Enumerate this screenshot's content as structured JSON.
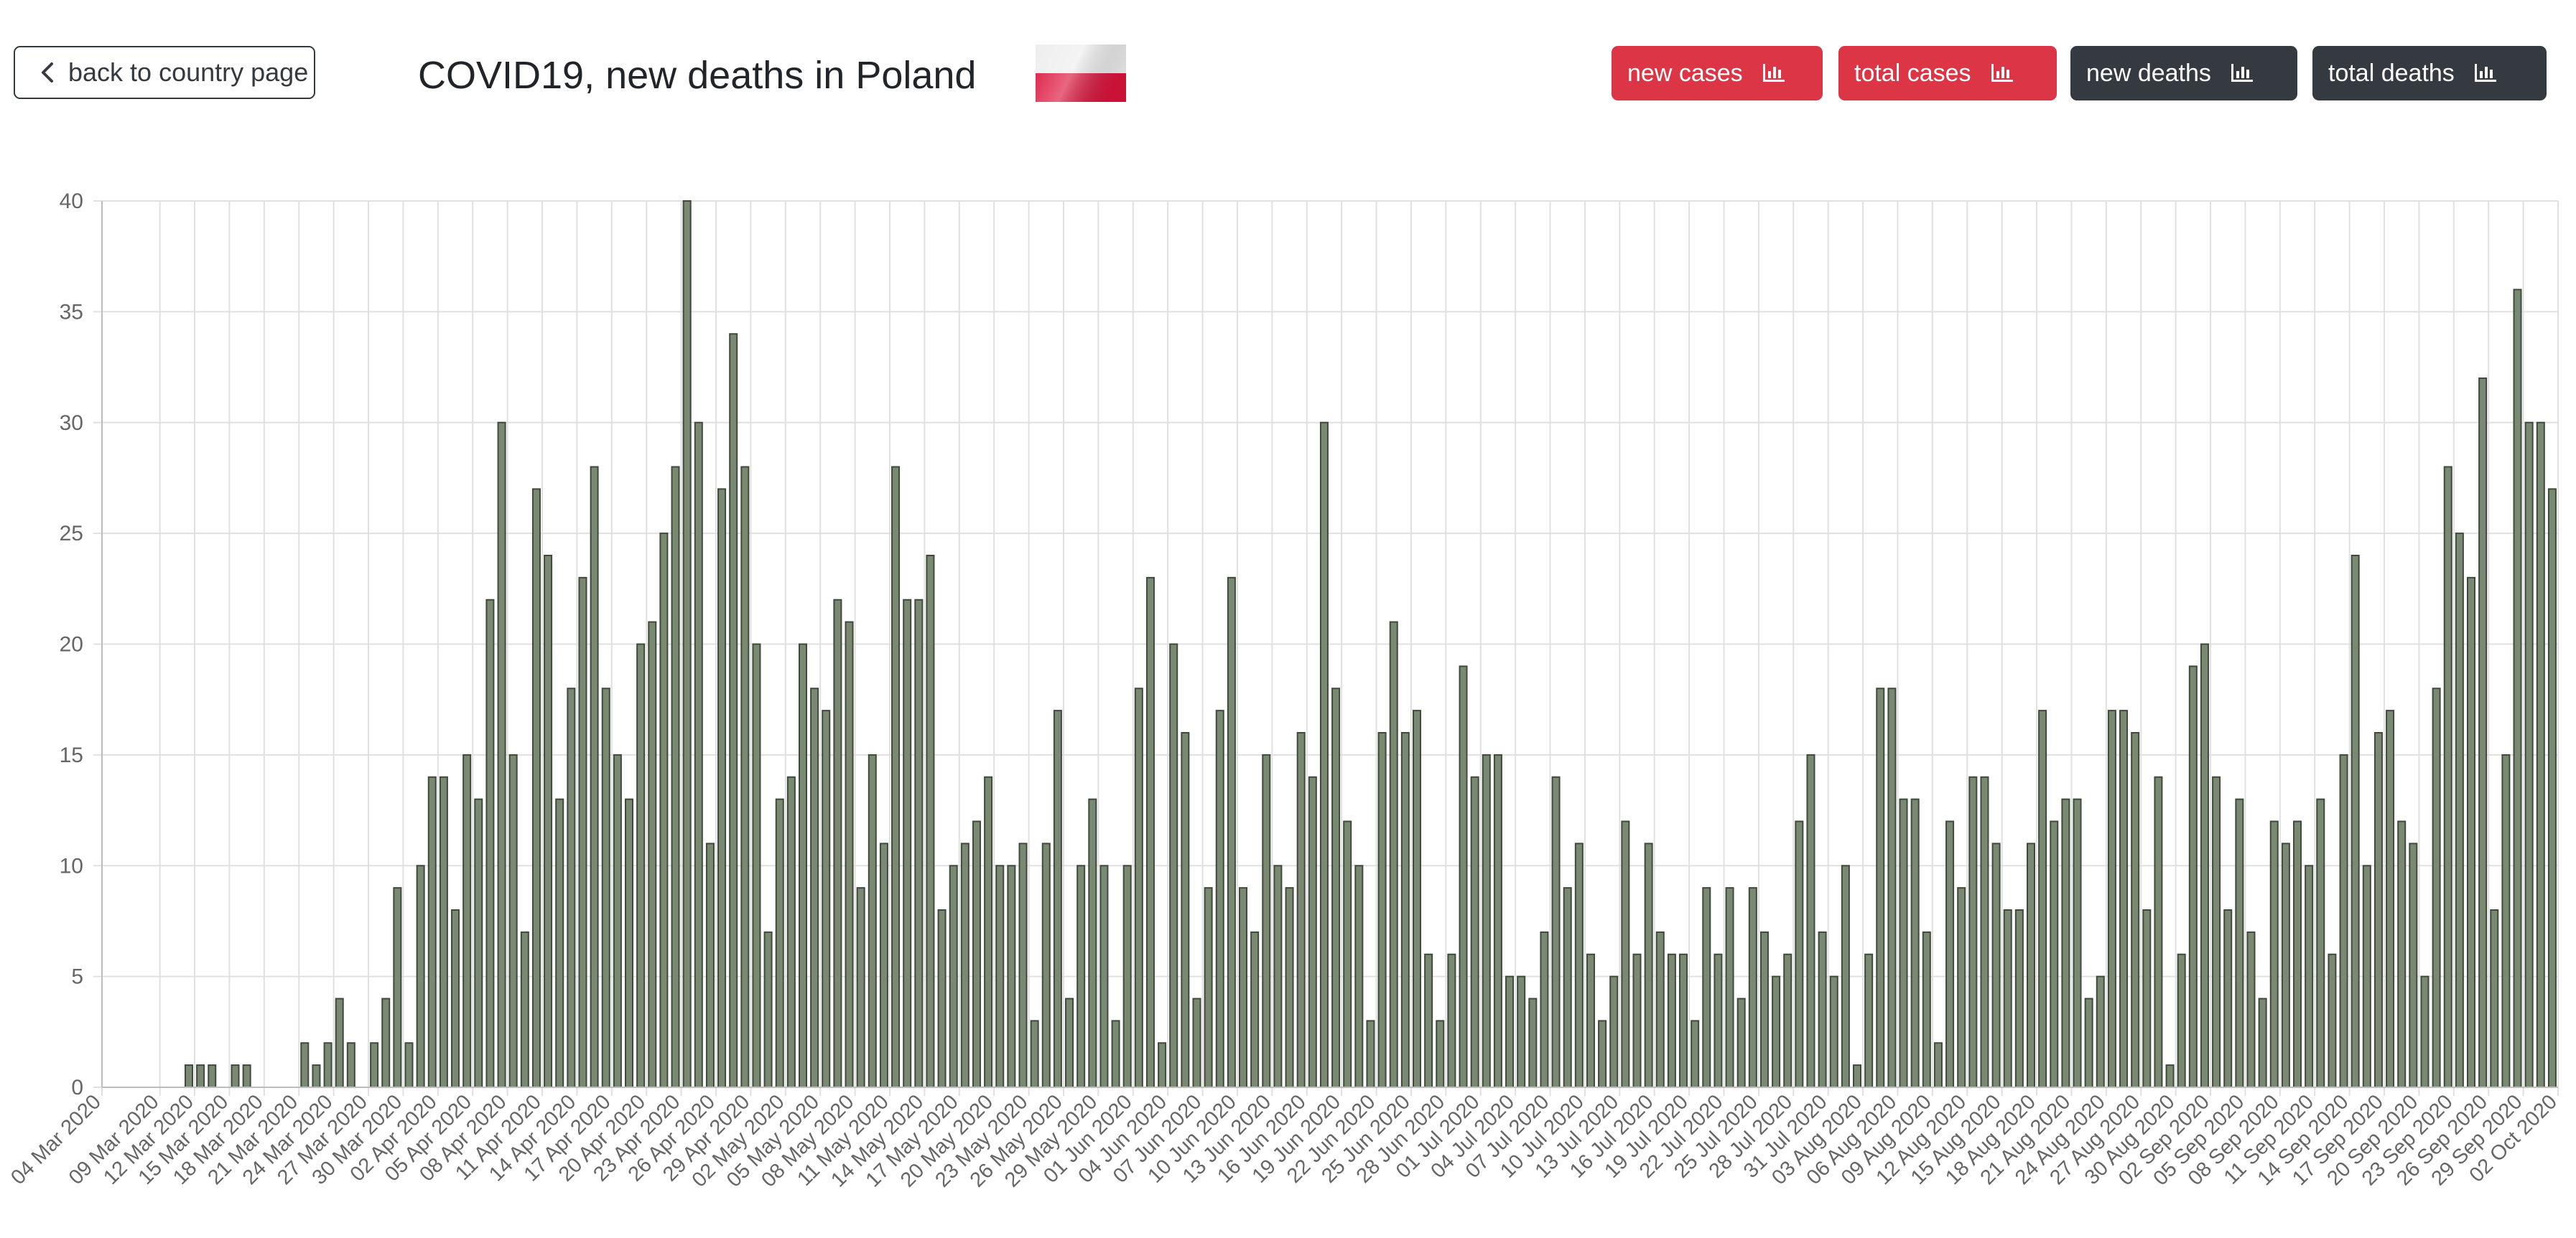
{
  "header": {
    "back_label": "back to country page",
    "title": "COVID19, new deaths in Poland",
    "flag_icon": "poland-flag-icon",
    "buttons": [
      {
        "label": "new cases",
        "icon": "bar-chart-icon",
        "style": "red"
      },
      {
        "label": "total cases",
        "icon": "bar-chart-icon",
        "style": "red"
      },
      {
        "label": "new deaths",
        "icon": "bar-chart-icon",
        "style": "dark"
      },
      {
        "label": "total deaths",
        "icon": "bar-chart-icon",
        "style": "dark"
      }
    ]
  },
  "colors": {
    "bar_fill": "#7a8a72",
    "bar_stroke": "#3f4a3b",
    "grid": "#e0e0e0",
    "red_button": "#dc3545",
    "dark_button": "#343a40",
    "flag_white": "#eeeeee",
    "flag_red": "#dc143c"
  },
  "chart_data": {
    "type": "bar",
    "title": "",
    "xlabel": "",
    "ylabel": "",
    "ylim": [
      0,
      40
    ],
    "yticks": [
      0,
      5,
      10,
      15,
      20,
      25,
      30,
      35,
      40
    ],
    "grid": true,
    "start_date": "2020-03-04",
    "tick_interval_days": 3,
    "x_tick_labels": [
      "04 Mar 2020",
      "09 Mar 2020",
      "12 Mar 2020",
      "15 Mar 2020",
      "18 Mar 2020",
      "21 Mar 2020",
      "24 Mar 2020",
      "27 Mar 2020",
      "30 Mar 2020",
      "02 Apr 2020",
      "05 Apr 2020",
      "08 Apr 2020",
      "11 Apr 2020",
      "14 Apr 2020",
      "17 Apr 2020",
      "20 Apr 2020",
      "23 Apr 2020",
      "26 Apr 2020",
      "29 Apr 2020",
      "02 May 2020",
      "05 May 2020",
      "08 May 2020",
      "11 May 2020",
      "14 May 2020",
      "17 May 2020",
      "20 May 2020",
      "23 May 2020",
      "26 May 2020",
      "29 May 2020",
      "01 Jun 2020",
      "04 Jun 2020",
      "07 Jun 2020",
      "10 Jun 2020",
      "13 Jun 2020",
      "16 Jun 2020",
      "19 Jun 2020",
      "22 Jun 2020",
      "25 Jun 2020",
      "28 Jun 2020",
      "01 Jul 2020",
      "04 Jul 2020",
      "07 Jul 2020",
      "10 Jul 2020",
      "13 Jul 2020",
      "16 Jul 2020",
      "19 Jul 2020",
      "22 Jul 2020",
      "25 Jul 2020",
      "28 Jul 2020",
      "31 Jul 2020",
      "03 Aug 2020",
      "06 Aug 2020",
      "09 Aug 2020",
      "12 Aug 2020",
      "15 Aug 2020",
      "18 Aug 2020",
      "21 Aug 2020",
      "24 Aug 2020",
      "27 Aug 2020",
      "30 Aug 2020",
      "02 Sep 2020",
      "05 Sep 2020",
      "08 Sep 2020",
      "11 Sep 2020",
      "14 Sep 2020",
      "17 Sep 2020",
      "20 Sep 2020",
      "23 Sep 2020",
      "26 Sep 2020",
      "29 Sep 2020",
      "02 Oct 2020"
    ],
    "values": [
      0,
      0,
      0,
      0,
      0,
      0,
      0,
      1,
      1,
      1,
      0,
      1,
      1,
      0,
      0,
      0,
      0,
      2,
      1,
      2,
      4,
      2,
      0,
      2,
      4,
      9,
      2,
      10,
      14,
      14,
      8,
      15,
      13,
      22,
      30,
      15,
      7,
      27,
      24,
      13,
      18,
      23,
      28,
      18,
      15,
      13,
      20,
      21,
      25,
      28,
      40,
      30,
      11,
      27,
      34,
      28,
      20,
      7,
      13,
      14,
      20,
      18,
      17,
      22,
      21,
      9,
      15,
      11,
      28,
      22,
      22,
      24,
      8,
      10,
      11,
      12,
      14,
      10,
      10,
      11,
      3,
      11,
      17,
      4,
      10,
      13,
      10,
      3,
      10,
      18,
      23,
      2,
      20,
      16,
      4,
      9,
      17,
      23,
      9,
      7,
      15,
      10,
      9,
      16,
      14,
      30,
      18,
      12,
      10,
      3,
      16,
      21,
      16,
      17,
      6,
      3,
      6,
      19,
      14,
      15,
      15,
      5,
      5,
      4,
      7,
      14,
      9,
      11,
      6,
      3,
      5,
      12,
      6,
      11,
      7,
      6,
      6,
      3,
      9,
      6,
      9,
      4,
      9,
      7,
      5,
      6,
      12,
      15,
      7,
      5,
      10,
      1,
      6,
      18,
      18,
      13,
      13,
      7,
      2,
      12,
      9,
      14,
      14,
      11,
      8,
      8,
      11,
      17,
      12,
      13,
      13,
      4,
      5,
      17,
      17,
      16,
      8,
      14,
      1,
      6,
      19,
      20,
      14,
      8,
      13,
      7,
      4,
      12,
      11,
      12,
      10,
      13,
      6,
      15,
      24,
      10,
      16,
      17,
      12,
      11,
      5,
      18,
      28,
      25,
      23,
      32,
      8,
      15,
      36,
      30,
      30,
      27
    ]
  }
}
